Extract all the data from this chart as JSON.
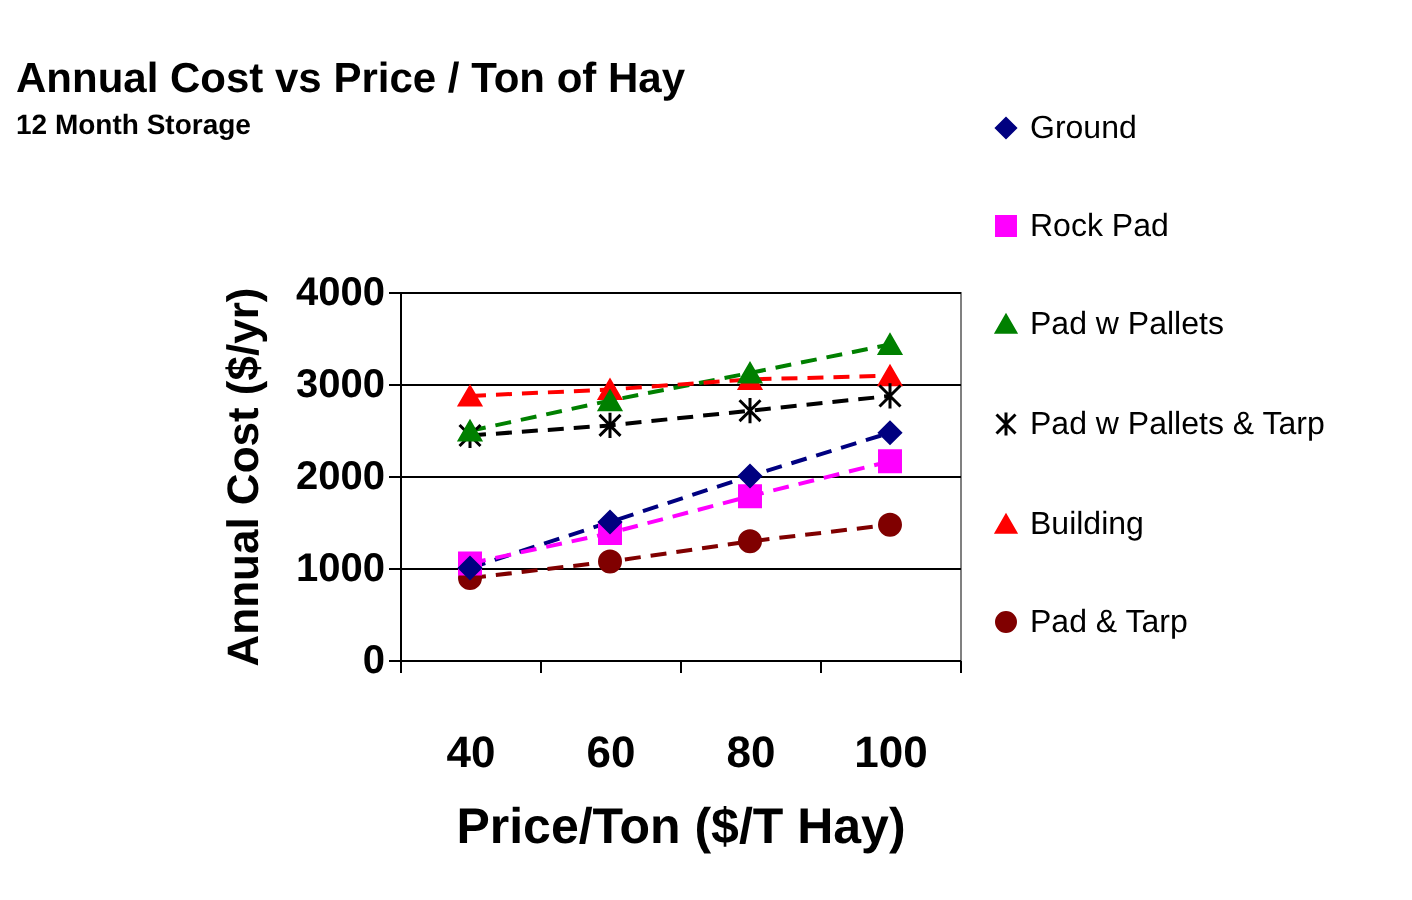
{
  "chart_data": {
    "type": "line",
    "title": "Annual Cost   vs   Price / Ton of Hay",
    "subtitle": "12 Month Storage",
    "xlabel": "Price/Ton ($/T Hay)",
    "ylabel": "Annual Cost ($/yr)",
    "categories": [
      "40",
      "60",
      "80",
      "100"
    ],
    "series": [
      {
        "name": "Ground",
        "color": "#000080",
        "marker": "diamond",
        "values": [
          1000,
          1500,
          2000,
          2470
        ]
      },
      {
        "name": "Rock Pad",
        "color": "#ff00ff",
        "marker": "square",
        "values": [
          1050,
          1380,
          1780,
          2160
        ]
      },
      {
        "name": "Pad w Pallets",
        "color": "#008000",
        "marker": "triangle",
        "values": [
          2490,
          2820,
          3120,
          3430
        ]
      },
      {
        "name": "Pad w Pallets & Tarp",
        "color": "#000000",
        "marker": "cross",
        "values": [
          2440,
          2550,
          2710,
          2870
        ]
      },
      {
        "name": "Building",
        "color": "#ff0000",
        "marker": "triangle",
        "values": [
          2870,
          2940,
          3050,
          3090
        ]
      },
      {
        "name": "Pad & Tarp",
        "color": "#800000",
        "marker": "circle",
        "values": [
          890,
          1070,
          1290,
          1470
        ]
      }
    ],
    "ylim": [
      0,
      4000
    ],
    "yticks": [
      0,
      1000,
      2000,
      3000,
      4000
    ],
    "grid": "y",
    "legend": "right",
    "line_style": "dashed"
  }
}
